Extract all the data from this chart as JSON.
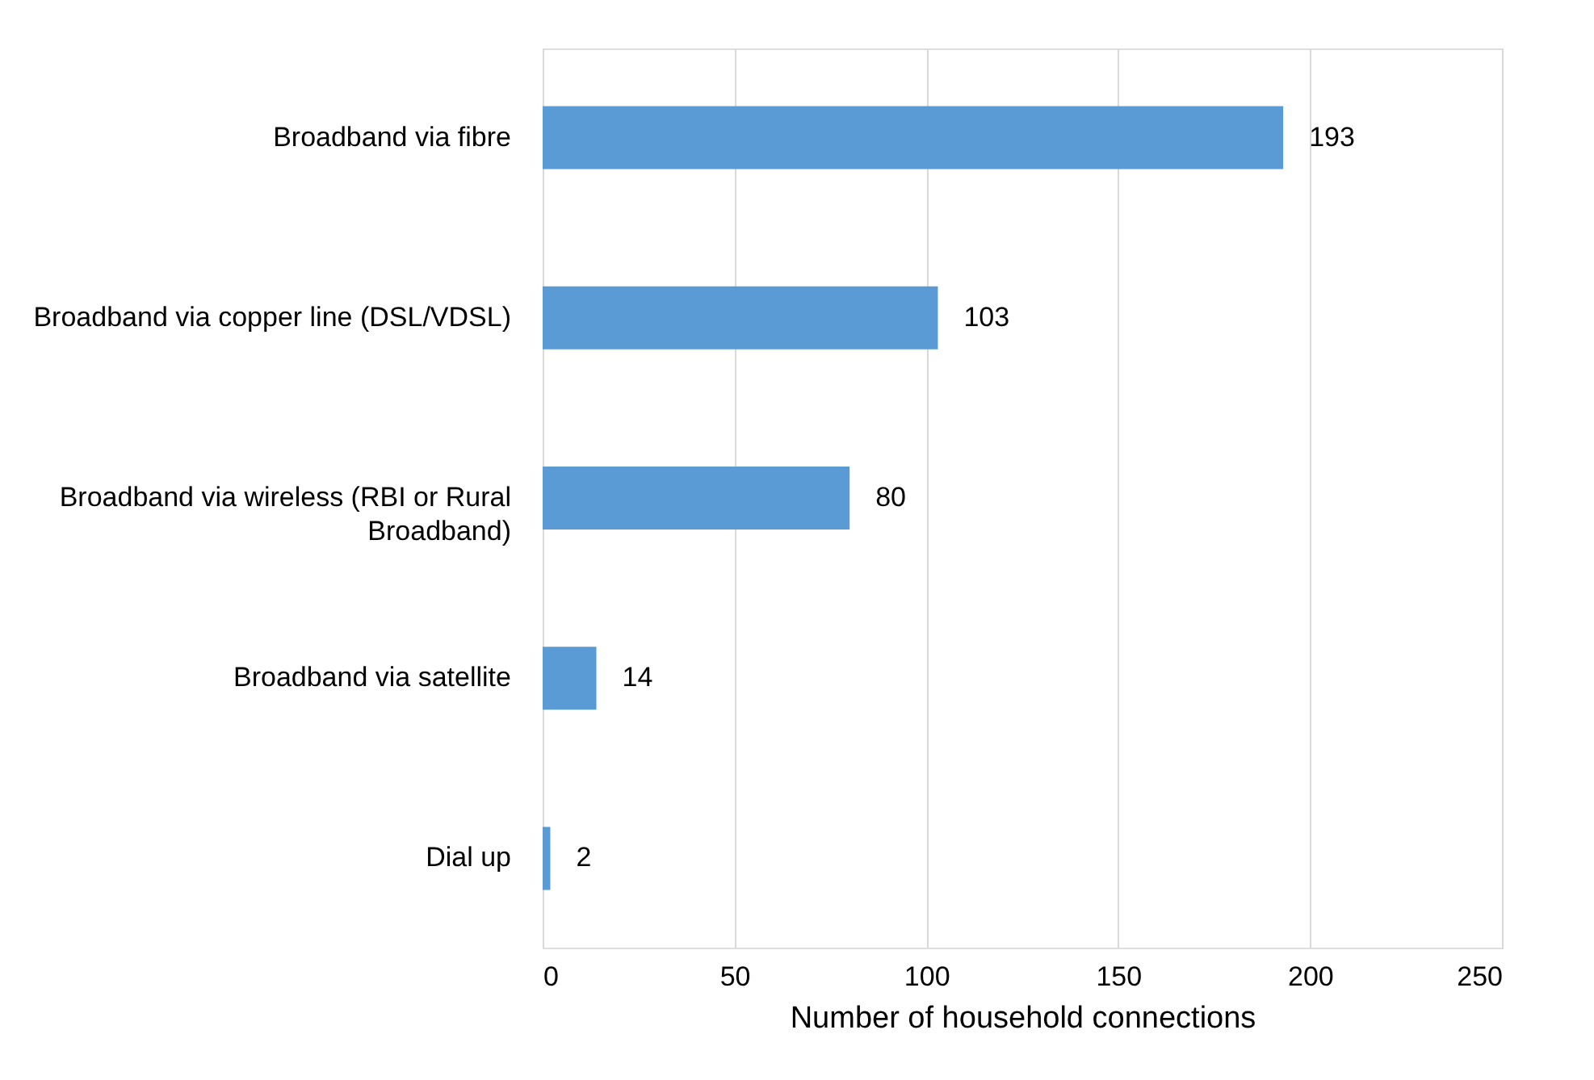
{
  "chart_data": {
    "type": "bar",
    "orientation": "horizontal",
    "xlabel": "Number of household connections",
    "categories": [
      "Broadband via fibre",
      "Broadband via copper line (DSL/VDSL)",
      "Broadband via wireless (RBI or Rural Broadband)",
      "Broadband via satellite",
      "Dial up"
    ],
    "values": [
      193,
      103,
      80,
      14,
      2
    ],
    "color": "#5b9bd5",
    "xlim": [
      0,
      250
    ],
    "xticks": [
      0,
      50,
      100,
      150,
      200,
      250
    ],
    "grid": "x",
    "data_labels": true
  }
}
